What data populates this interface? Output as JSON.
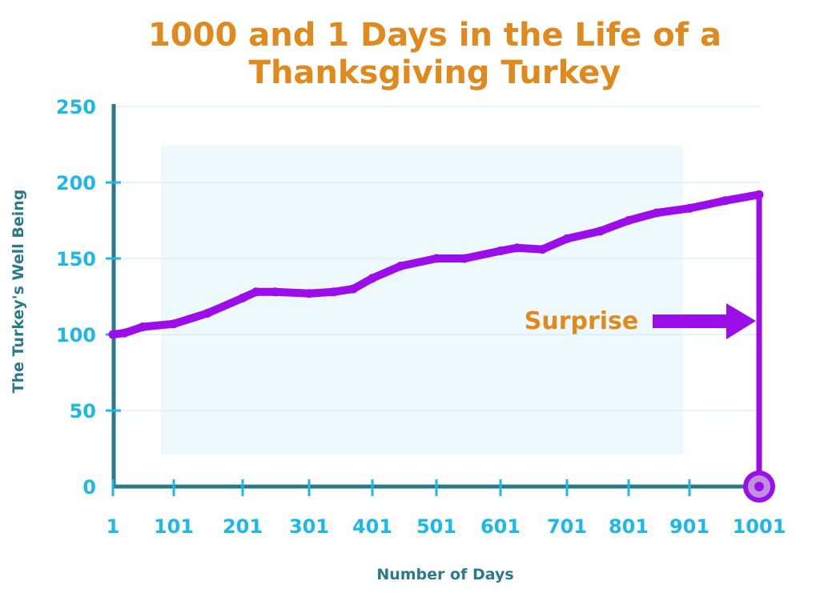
{
  "chart_data": {
    "type": "line",
    "title": "1000 and 1 Days in the Life of a Thanksgiving Turkey",
    "title_lines": [
      "1000 and 1 Days in the Life of a",
      "Thanksgiving Turkey"
    ],
    "xlabel": "Number of Days",
    "ylabel": "The Turkey's Well Being",
    "xlim": [
      1,
      1001
    ],
    "ylim": [
      0,
      250
    ],
    "x_ticks": [
      1,
      101,
      201,
      301,
      401,
      501,
      601,
      701,
      801,
      901,
      1001
    ],
    "y_ticks": [
      0,
      50,
      100,
      150,
      200,
      250
    ],
    "grid": true,
    "series": [
      {
        "x": [
          1,
          20,
          50,
          101,
          150,
          201,
          221,
          250,
          301,
          340,
          371,
          401,
          445,
          501,
          545,
          601,
          626,
          664,
          701,
          755,
          801,
          847,
          901,
          952,
          1001,
          1001
        ],
        "y": [
          100,
          101,
          105,
          107,
          114,
          124,
          128,
          128,
          127,
          128,
          130,
          137,
          145,
          150,
          150,
          155,
          157,
          156,
          163,
          168,
          175,
          180,
          183,
          188,
          192,
          0
        ]
      }
    ],
    "annotations": [
      {
        "text": "Surprise",
        "x": 1001,
        "y": 108,
        "arrow": "right"
      }
    ],
    "colors": {
      "title": "#E08A1E",
      "annotation": "#E08A1E",
      "line": "#9B0EEA",
      "axis": "#2A7A8C",
      "tick_labels": "#1EB8E8",
      "axis_labels": "#2A7A8C",
      "band": "#EDF9FC",
      "gridline": "#E4EEF1"
    }
  }
}
